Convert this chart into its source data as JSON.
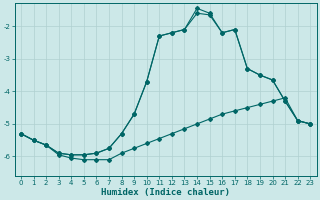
{
  "bg_color": "#cce8e8",
  "grid_color": "#b0d0d0",
  "line_color": "#006666",
  "xlabel": "Humidex (Indice chaleur)",
  "xlim": [
    -0.5,
    23.5
  ],
  "ylim": [
    -6.6,
    -1.3
  ],
  "yticks": [
    -6,
    -5,
    -4,
    -3,
    -2
  ],
  "xticks": [
    0,
    1,
    2,
    3,
    4,
    5,
    6,
    7,
    8,
    9,
    10,
    11,
    12,
    13,
    14,
    15,
    16,
    17,
    18,
    19,
    20,
    21,
    22,
    23
  ],
  "s1_x": [
    0,
    1,
    2,
    3,
    4,
    5,
    6,
    7,
    8,
    9,
    10,
    11,
    12,
    13,
    14,
    15,
    16,
    17,
    18,
    19,
    20,
    21,
    22,
    23
  ],
  "s1_y": [
    -5.3,
    -5.5,
    -5.65,
    -5.95,
    -6.05,
    -6.1,
    -6.1,
    -6.1,
    -5.9,
    -5.75,
    -5.6,
    -5.45,
    -5.3,
    -5.15,
    -5.0,
    -4.85,
    -4.7,
    -4.6,
    -4.5,
    -4.4,
    -4.3,
    -4.2,
    -4.9,
    -5.0
  ],
  "s2_x": [
    0,
    1,
    2,
    3,
    4,
    5,
    6,
    7,
    8,
    9,
    10,
    11,
    12,
    13,
    14,
    15,
    16,
    17,
    18,
    19,
    20,
    21,
    22,
    23
  ],
  "s2_y": [
    -5.3,
    -5.5,
    -5.65,
    -5.9,
    -5.95,
    -5.95,
    -5.9,
    -5.75,
    -5.3,
    -4.7,
    -3.7,
    -2.3,
    -2.2,
    -2.1,
    -1.6,
    -1.65,
    -2.2,
    -2.1,
    -3.3,
    -3.5,
    -3.65,
    -4.3,
    -4.9,
    -5.0
  ],
  "s3_x": [
    0,
    1,
    2,
    3,
    4,
    5,
    6,
    7,
    8,
    9,
    10,
    11,
    12,
    13,
    14,
    15,
    16,
    17,
    18,
    19,
    20,
    21,
    22,
    23
  ],
  "s3_y": [
    -5.3,
    -5.5,
    -5.65,
    -5.9,
    -5.95,
    -5.95,
    -5.9,
    -5.75,
    -5.3,
    -4.7,
    -3.7,
    -2.3,
    -2.2,
    -2.1,
    -1.45,
    -1.6,
    -2.2,
    -2.1,
    -3.3,
    -3.5,
    -3.65,
    -4.3,
    -4.9,
    -5.0
  ]
}
